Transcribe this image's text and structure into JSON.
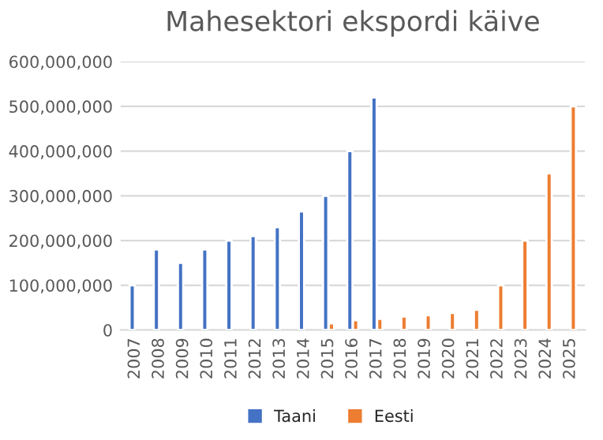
{
  "chart_data": {
    "type": "bar",
    "title": "Mahesektori ekspordi käive",
    "categories": [
      "2007",
      "2008",
      "2009",
      "2010",
      "2011",
      "2012",
      "2013",
      "2014",
      "2015",
      "2016",
      "2017",
      "2018",
      "2019",
      "2020",
      "2021",
      "2022",
      "2023",
      "2024",
      "2025"
    ],
    "series": [
      {
        "name": "Taani",
        "color": "#4472c4",
        "values": [
          100000000,
          180000000,
          150000000,
          180000000,
          200000000,
          210000000,
          230000000,
          265000000,
          300000000,
          400000000,
          520000000,
          null,
          null,
          null,
          null,
          null,
          null,
          null,
          null
        ]
      },
      {
        "name": "Eesti",
        "color": "#ed7d31",
        "values": [
          null,
          null,
          null,
          null,
          null,
          null,
          null,
          null,
          15000000,
          22000000,
          25000000,
          30000000,
          33000000,
          38000000,
          45000000,
          100000000,
          200000000,
          350000000,
          500000000
        ]
      }
    ],
    "ylim": [
      0,
      600000000
    ],
    "yticks": [
      {
        "value": 0,
        "label": "0"
      },
      {
        "value": 100000000,
        "label": "100,000,000"
      },
      {
        "value": 200000000,
        "label": "200,000,000"
      },
      {
        "value": 300000000,
        "label": "300,000,000"
      },
      {
        "value": 400000000,
        "label": "400,000,000"
      },
      {
        "value": 500000000,
        "label": "500,000,000"
      },
      {
        "value": 600000000,
        "label": "600,000,000"
      }
    ],
    "grid": "y",
    "legend": "bottom"
  }
}
